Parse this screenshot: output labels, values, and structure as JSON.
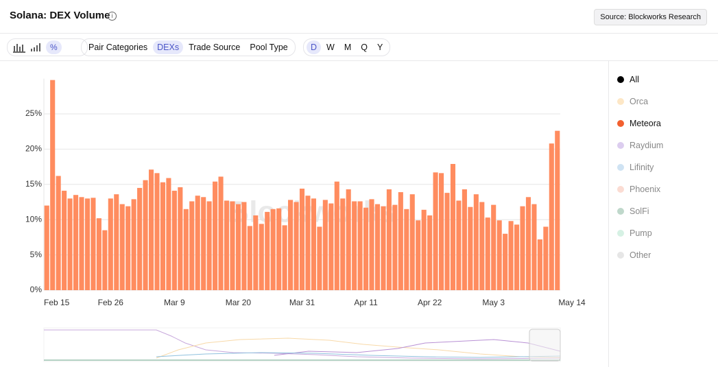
{
  "header": {
    "title": "Solana: DEX Volume",
    "source": "Source: Blockworks Research"
  },
  "toolbar": {
    "groups": [
      [
        "Pair Categories",
        "DEXs",
        "Trade Source",
        "Pool Type"
      ],
      [
        "D",
        "W",
        "M",
        "Q",
        "Y"
      ]
    ],
    "active": [
      "DEXs",
      "D"
    ]
  },
  "chart_data": {
    "type": "bar",
    "watermark": "Blockworks",
    "categories": [
      "Feb 15",
      null,
      null,
      null,
      null,
      null,
      null,
      null,
      null,
      null,
      null,
      "Feb 26",
      null,
      null,
      null,
      null,
      null,
      null,
      null,
      null,
      null,
      null,
      "Mar 9",
      null,
      null,
      null,
      null,
      null,
      null,
      null,
      null,
      null,
      null,
      "Mar 20",
      null,
      null,
      null,
      null,
      null,
      null,
      null,
      null,
      null,
      null,
      "Mar 31",
      null,
      null,
      null,
      null,
      null,
      null,
      null,
      null,
      null,
      null,
      "Apr 11",
      null,
      null,
      null,
      null,
      null,
      null,
      null,
      null,
      null,
      null,
      "Apr 22",
      null,
      null,
      null,
      null,
      null,
      null,
      null,
      null,
      null,
      null,
      "May 3",
      null,
      null,
      null,
      null,
      null,
      null,
      null,
      null,
      null,
      null,
      "May 14"
    ],
    "series": [
      {
        "color": "#ff8c5f",
        "values": [
          12,
          29.8,
          16.2,
          14.1,
          13,
          13.5,
          13.2,
          13,
          13.1,
          10.2,
          8.5,
          13,
          13.6,
          12.2,
          11.9,
          12.9,
          14.5,
          15.6,
          17.1,
          16.6,
          15.3,
          15.9,
          14.1,
          14.6,
          11.5,
          12.6,
          13.4,
          13.2,
          12.6,
          15.4,
          16.1,
          12.7,
          12.6,
          12.2,
          12.5,
          9.1,
          10.6,
          9.4,
          11.1,
          11.5,
          11.6,
          9.2,
          12.8,
          12.5,
          14.4,
          13.4,
          13,
          9,
          12.8,
          12.3,
          15.4,
          13,
          14.3,
          12.6,
          12.6,
          11.7,
          12.9,
          12.2,
          11.9,
          14.3,
          12.1,
          13.9,
          11.5,
          13.6,
          9.9,
          11.4,
          10.6,
          16.7,
          16.6,
          13.8,
          17.9,
          12.7,
          14.3,
          11.8,
          13.6,
          12.5,
          10.3,
          12.1,
          9.9,
          8,
          9.8,
          9.3,
          11.9,
          13.2,
          12.2,
          7.2,
          9,
          20.8,
          22.6
        ]
      }
    ],
    "ylim": [
      0,
      30
    ],
    "yticks": [
      {
        "value": 0,
        "label": "0%"
      },
      {
        "value": 5,
        "label": "5%"
      },
      {
        "value": 10,
        "label": "10%"
      },
      {
        "value": 15,
        "label": "15%"
      },
      {
        "value": 20,
        "label": "20%"
      },
      {
        "value": 25,
        "label": "25%"
      }
    ],
    "grid": true,
    "legend": [
      {
        "name": "All",
        "color": "#000000",
        "active": true
      },
      {
        "name": "Orca",
        "color": "#fde7c6",
        "active": false
      },
      {
        "name": "Meteora",
        "color": "#f2602f",
        "active": true
      },
      {
        "name": "Raydium",
        "color": "#dccdef",
        "active": false
      },
      {
        "name": "Lifinity",
        "color": "#cfe3f3",
        "active": false
      },
      {
        "name": "Phoenix",
        "color": "#fbdcd3",
        "active": false
      },
      {
        "name": "SolFi",
        "color": "#bfd8cb",
        "active": false
      },
      {
        "name": "Pump",
        "color": "#d6f1e4",
        "active": false
      },
      {
        "name": "Other",
        "color": "#e6e6e6",
        "active": false
      }
    ]
  }
}
